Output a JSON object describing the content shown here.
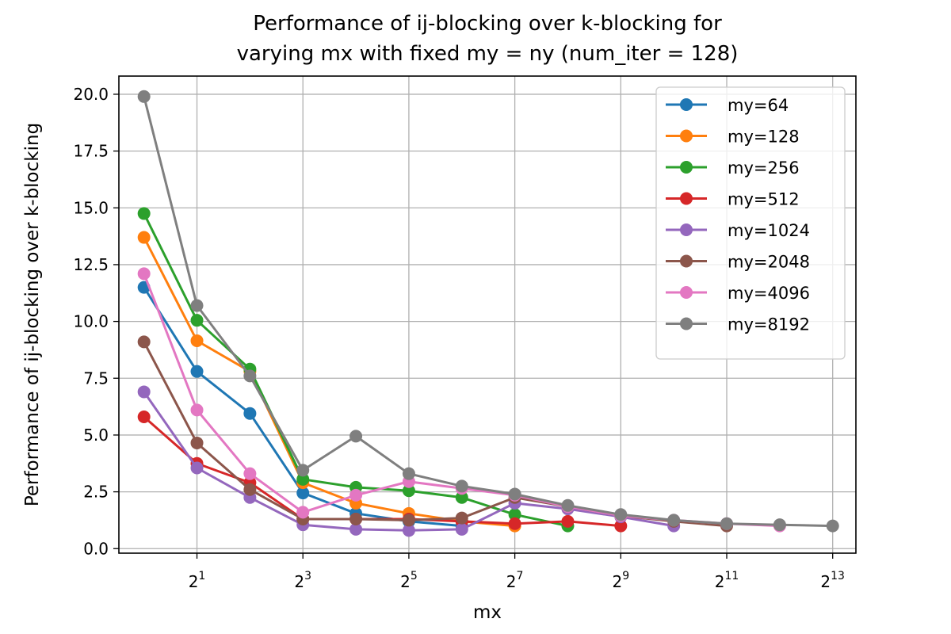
{
  "chart_data": {
    "type": "line",
    "title_lines": [
      "Performance of ij-blocking over k-blocking for",
      "varying mx with fixed my = ny (num_iter = 128)"
    ],
    "xlabel": "mx",
    "ylabel": "Performance of ij-blocking over k-blocking",
    "x_scale": "log2",
    "x_ticks": [
      {
        "value": 2,
        "base": "2",
        "exp": "1"
      },
      {
        "value": 8,
        "base": "2",
        "exp": "3"
      },
      {
        "value": 32,
        "base": "2",
        "exp": "5"
      },
      {
        "value": 128,
        "base": "2",
        "exp": "7"
      },
      {
        "value": 512,
        "base": "2",
        "exp": "9"
      },
      {
        "value": 2048,
        "base": "2",
        "exp": "11"
      },
      {
        "value": 8192,
        "base": "2",
        "exp": "13"
      }
    ],
    "y_ticks": [
      "0.0",
      "2.5",
      "5.0",
      "7.5",
      "10.0",
      "12.5",
      "15.0",
      "17.5",
      "20.0"
    ],
    "xlim": [
      0.72,
      11100
    ],
    "ylim": [
      -0.2,
      20.8
    ],
    "grid": true,
    "legend_position": "upper-right",
    "x": [
      1,
      2,
      4,
      8,
      16,
      32,
      64,
      128,
      256,
      512,
      1024,
      2048,
      4096,
      8192
    ],
    "series": [
      {
        "name": "my=64",
        "color": "#1f77b4",
        "x": [
          1,
          2,
          4,
          8,
          16,
          32,
          64
        ],
        "values": [
          11.5,
          7.8,
          5.95,
          2.45,
          1.55,
          1.2,
          1.0
        ]
      },
      {
        "name": "my=128",
        "color": "#ff7f0e",
        "x": [
          1,
          2,
          4,
          8,
          16,
          32,
          64,
          128
        ],
        "values": [
          13.7,
          9.15,
          7.8,
          2.9,
          2.0,
          1.55,
          1.2,
          1.0
        ]
      },
      {
        "name": "my=256",
        "color": "#2ca02c",
        "x": [
          1,
          2,
          4,
          8,
          16,
          32,
          64,
          128,
          256
        ],
        "values": [
          14.75,
          10.05,
          7.9,
          3.05,
          2.7,
          2.55,
          2.25,
          1.5,
          1.0
        ]
      },
      {
        "name": "my=512",
        "color": "#d62728",
        "x": [
          1,
          2,
          4,
          8,
          16,
          32,
          64,
          128,
          256,
          512
        ],
        "values": [
          5.8,
          3.75,
          2.9,
          1.3,
          1.3,
          1.3,
          1.2,
          1.1,
          1.2,
          1.0
        ]
      },
      {
        "name": "my=1024",
        "color": "#9467bd",
        "x": [
          1,
          2,
          4,
          8,
          16,
          32,
          64,
          128,
          256,
          512,
          1024
        ],
        "values": [
          6.9,
          3.55,
          2.25,
          1.05,
          0.85,
          0.8,
          0.85,
          2.0,
          1.75,
          1.4,
          1.0
        ]
      },
      {
        "name": "my=2048",
        "color": "#8c564b",
        "x": [
          1,
          2,
          4,
          8,
          16,
          32,
          64,
          128,
          256,
          512,
          1024,
          2048
        ],
        "values": [
          9.1,
          4.65,
          2.6,
          1.3,
          1.3,
          1.25,
          1.35,
          2.25,
          1.85,
          1.45,
          1.2,
          1.0
        ]
      },
      {
        "name": "my=4096",
        "color": "#e377c2",
        "x": [
          1,
          2,
          4,
          8,
          16,
          32,
          64,
          128,
          256,
          512,
          1024,
          2048,
          4096
        ],
        "values": [
          12.1,
          6.1,
          3.3,
          1.6,
          2.35,
          2.95,
          2.65,
          2.35,
          1.85,
          1.45,
          1.25,
          1.1,
          1.0
        ]
      },
      {
        "name": "my=8192",
        "color": "#7f7f7f",
        "x": [
          1,
          2,
          4,
          8,
          16,
          32,
          64,
          128,
          256,
          512,
          1024,
          2048,
          4096,
          8192
        ],
        "values": [
          19.9,
          10.7,
          7.6,
          3.45,
          4.95,
          3.3,
          2.75,
          2.4,
          1.9,
          1.5,
          1.25,
          1.1,
          1.05,
          1.0
        ]
      }
    ]
  }
}
